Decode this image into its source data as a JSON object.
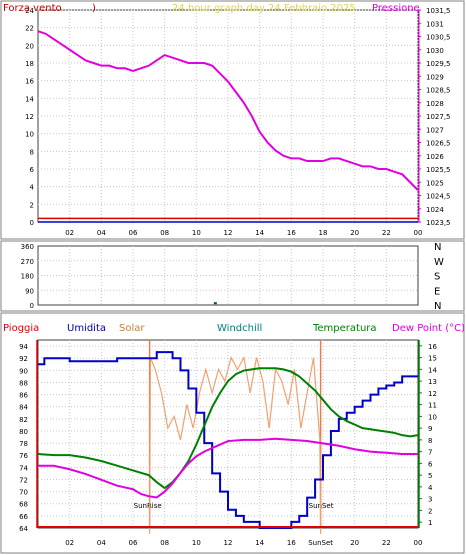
{
  "chart_data": [
    {
      "type": "line",
      "title": "24 hour graph day  24 Febbraio 2025",
      "ylabel_left": "Forza vento",
      "ylabel_left_unit": ")",
      "ylabel_right": "Pressione",
      "y_left_ticks": [
        "24",
        "22",
        "20",
        "18",
        "16",
        "14",
        "12",
        "10",
        "8",
        "6",
        "4",
        "2",
        "0"
      ],
      "y_right_ticks": [
        "1031,5",
        "1031",
        "1030,5",
        "1030",
        "1029,5",
        "1029",
        "1028,5",
        "1028",
        "1027,5",
        "1027",
        "1026,5",
        "1026",
        "1025,5",
        "1025",
        "1024,5",
        "1024",
        "1023,5"
      ],
      "x_ticks": [
        "02",
        "04",
        "06",
        "08",
        "10",
        "12",
        "14",
        "16",
        "18",
        "20",
        "22",
        "00"
      ],
      "ylim_left": [
        0,
        24
      ],
      "ylim_right": [
        1023.5,
        1031.5
      ],
      "colors": {
        "wind": "#e00000",
        "gust": "#0000cc",
        "pressure": "#e000e0"
      },
      "series": [
        {
          "name": "Pressione",
          "x": [
            0,
            0.5,
            1,
            1.5,
            2,
            2.5,
            3,
            3.5,
            4,
            4.5,
            5,
            5.5,
            6,
            6.5,
            7,
            7.5,
            8,
            8.5,
            9,
            9.5,
            10,
            10.5,
            11,
            11.5,
            12,
            12.5,
            13,
            13.5,
            14,
            14.5,
            15,
            15.5,
            16,
            16.5,
            17,
            17.5,
            18,
            18.5,
            19,
            19.5,
            20,
            20.5,
            21,
            21.5,
            22,
            22.5,
            23,
            23.5,
            24
          ],
          "values": [
            1030.7,
            1030.6,
            1030.4,
            1030.2,
            1030.0,
            1029.8,
            1029.6,
            1029.5,
            1029.4,
            1029.4,
            1029.3,
            1029.3,
            1029.2,
            1029.3,
            1029.4,
            1029.6,
            1029.8,
            1029.7,
            1029.6,
            1029.5,
            1029.5,
            1029.5,
            1029.4,
            1029.1,
            1028.8,
            1028.4,
            1028.0,
            1027.5,
            1026.9,
            1026.5,
            1026.2,
            1026.0,
            1025.9,
            1025.9,
            1025.8,
            1025.8,
            1025.8,
            1025.9,
            1025.9,
            1025.8,
            1025.7,
            1025.6,
            1025.6,
            1025.5,
            1025.5,
            1025.4,
            1025.3,
            1025.0,
            1024.7
          ]
        },
        {
          "name": "Wind",
          "x": [
            0,
            24
          ],
          "values": [
            0.3,
            0.3
          ]
        },
        {
          "name": "Gust",
          "x": [
            0,
            24
          ],
          "values": [
            0,
            0
          ]
        }
      ]
    },
    {
      "type": "scatter",
      "y_ticks": [
        "360",
        "270",
        "180",
        "90",
        "0"
      ],
      "y_right_labels": [
        "N",
        "W",
        "S",
        "E",
        "N"
      ],
      "ylim": [
        0,
        360
      ],
      "series": [
        {
          "name": "Direction",
          "x": [
            11.2
          ],
          "values": [
            5
          ]
        }
      ]
    },
    {
      "type": "line",
      "legend": [
        "Pioggia",
        "Umidita",
        "Solar",
        "Windchill",
        "Temperatura",
        "Dew Point (°C)"
      ],
      "legend_colors": [
        "#e00000",
        "#000099",
        "#c08040",
        "#008080",
        "#008000",
        "#e000e0"
      ],
      "y_left_ticks": [
        "94",
        "92",
        "90",
        "88",
        "86",
        "84",
        "82",
        "80",
        "78",
        "76",
        "74",
        "72",
        "70",
        "68",
        "66",
        "64"
      ],
      "y_right_ticks": [
        "16",
        "15",
        "14",
        "13",
        "12",
        "11",
        "10",
        "9",
        "8",
        "7",
        "6",
        "5",
        "4",
        "3",
        "2",
        "1"
      ],
      "ylim_left": [
        64,
        95
      ],
      "ylim_right": [
        0.5,
        16.5
      ],
      "x_ticks": [
        "02",
        "04",
        "06",
        "08",
        "10",
        "12",
        "14",
        "16",
        "18",
        "20",
        "22",
        "00"
      ],
      "sunrise_label": "SunRise",
      "sunset_label": "SunSet",
      "sunset_tick_label": "SunSet",
      "sunrise_hour": 7.05,
      "sunset_hour": 17.85,
      "series": [
        {
          "name": "Umidita",
          "x": [
            0,
            0.4,
            1,
            2,
            3,
            4,
            5,
            6,
            7,
            7.5,
            8,
            8.5,
            9,
            9.5,
            10,
            10.5,
            11,
            11.5,
            12,
            12.5,
            13,
            13.5,
            14,
            14.5,
            15,
            15.5,
            16,
            16.5,
            17,
            17.5,
            18,
            18.5,
            19,
            19.5,
            20,
            20.5,
            21,
            21.5,
            22,
            22.5,
            23,
            24
          ],
          "values": [
            91,
            92,
            92,
            91.5,
            91.5,
            91.5,
            92,
            92,
            92,
            93,
            93,
            92,
            90,
            87,
            83,
            78,
            73,
            70,
            67,
            66,
            65,
            65,
            64,
            64,
            64,
            64,
            65,
            66,
            69,
            72,
            76,
            80,
            82,
            83,
            84,
            85,
            86,
            87,
            87.5,
            88,
            89,
            89
          ]
        },
        {
          "name": "Temperatura",
          "x": [
            0,
            1,
            2,
            3,
            4,
            5,
            6,
            7,
            7.5,
            8,
            8.5,
            9,
            9.5,
            10,
            10.5,
            11,
            11.5,
            12,
            12.5,
            13,
            13.5,
            14,
            14.5,
            15,
            15.5,
            16,
            16.5,
            17,
            17.5,
            18,
            18.5,
            19,
            19.5,
            20,
            20.5,
            21,
            21.5,
            22,
            22.5,
            23,
            23.5,
            24
          ],
          "values": [
            6.8,
            6.7,
            6.7,
            6.5,
            6.2,
            5.8,
            5.4,
            5.0,
            4.4,
            3.9,
            4.4,
            5.2,
            6.2,
            7.6,
            9.2,
            10.8,
            12.0,
            13.0,
            13.6,
            13.9,
            14.0,
            14.1,
            14.1,
            14.1,
            14.0,
            13.8,
            13.4,
            12.8,
            12.2,
            11.4,
            10.6,
            10.0,
            9.6,
            9.3,
            9.0,
            8.9,
            8.8,
            8.7,
            8.6,
            8.4,
            8.3,
            8.4
          ]
        },
        {
          "name": "Dew Point",
          "x": [
            0,
            1,
            2,
            3,
            4,
            5,
            6,
            6.5,
            7,
            7.5,
            8,
            8.5,
            9,
            9.5,
            10,
            10.5,
            11,
            11.5,
            12,
            13,
            14,
            15,
            16,
            17,
            18,
            19,
            20,
            21,
            22,
            23,
            24
          ],
          "values": [
            5.8,
            5.8,
            5.5,
            5.1,
            4.6,
            4.1,
            3.8,
            3.4,
            3.2,
            3.1,
            3.6,
            4.3,
            5.2,
            6.0,
            6.6,
            7.0,
            7.3,
            7.6,
            7.9,
            8.0,
            8.0,
            8.1,
            8.0,
            7.9,
            7.7,
            7.5,
            7.2,
            7.0,
            6.9,
            6.8,
            6.8
          ]
        },
        {
          "name": "Solar",
          "x": [
            7.05,
            7.1,
            7.4,
            7.8,
            8.2,
            8.6,
            9.0,
            9.4,
            9.8,
            10.2,
            10.6,
            11.0,
            11.4,
            11.8,
            12.2,
            12.6,
            13.0,
            13.4,
            13.8,
            14.2,
            14.6,
            15.0,
            15.4,
            15.8,
            16.2,
            16.6,
            17.0,
            17.4,
            17.8,
            17.85
          ],
          "values": [
            0,
            15,
            14,
            12,
            9,
            10,
            8,
            11,
            9,
            12,
            14,
            12,
            14,
            13,
            15,
            14,
            15,
            12,
            15,
            13,
            9,
            14,
            13,
            11,
            14,
            9,
            12,
            15,
            8,
            0
          ]
        },
        {
          "name": "Pioggia",
          "x": [
            0,
            24
          ],
          "values": [
            0.5,
            0.5
          ]
        }
      ]
    }
  ]
}
